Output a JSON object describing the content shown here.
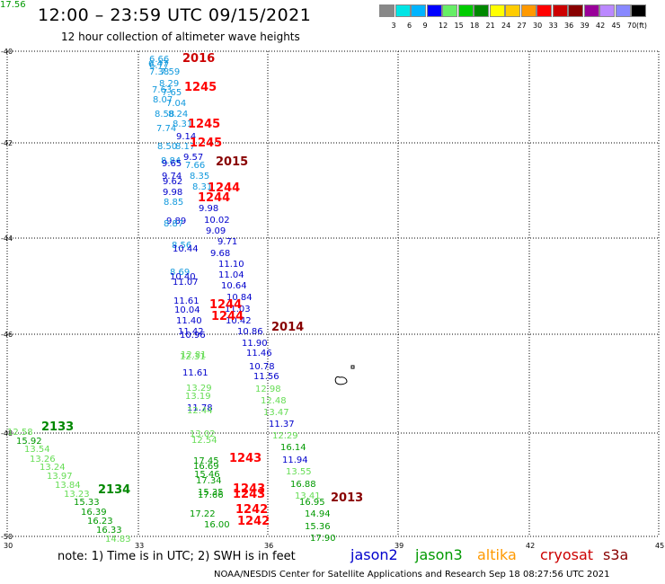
{
  "title": "12:00 – 23:59 UTC 09/15/2021",
  "subtitle": "12 hour collection of altimeter wave heights",
  "scale": {
    "colors": [
      "#888888",
      "#00e5e5",
      "#00b4ff",
      "#0000ff",
      "#66ee66",
      "#00cc00",
      "#008800",
      "#ffff00",
      "#ffcc00",
      "#ff9900",
      "#ff0000",
      "#cc0000",
      "#880000",
      "#990099",
      "#bb88ff",
      "#8888ff",
      "#000000"
    ],
    "labels": [
      "3",
      "6",
      "9",
      "12",
      "15",
      "18",
      "21",
      "24",
      "27",
      "30",
      "33",
      "36",
      "39",
      "42",
      "45",
      "70"
    ],
    "unit": "(ft)"
  },
  "axes": {
    "lat_labels": [
      "-40",
      "-42",
      "-44",
      "-46",
      "-48",
      "-50"
    ],
    "lon_labels": [
      "30",
      "33",
      "36",
      "39",
      "42",
      "45"
    ]
  },
  "tracks": {
    "colors": {
      "jason2": "#0000cc",
      "jason3": "#009900",
      "altika": "#ff9900",
      "cryosat": "#cc0000",
      "s3a": "#880000",
      "green_light": "#66dd55",
      "cyan": "#1199dd"
    },
    "time_labels": [
      {
        "text": "2016",
        "color": "#cc0000"
      },
      {
        "text": "1245",
        "color": "#ff0000"
      },
      {
        "text": "1245",
        "color": "#ff0000"
      },
      {
        "text": "1245",
        "color": "#ff0000"
      },
      {
        "text": "2015",
        "color": "#880000"
      },
      {
        "text": "1244",
        "color": "#ff0000"
      },
      {
        "text": "1244",
        "color": "#ff0000"
      },
      {
        "text": "1244",
        "color": "#ff0000"
      },
      {
        "text": "1244",
        "color": "#ff0000"
      },
      {
        "text": "2014",
        "color": "#880000"
      },
      {
        "text": "2133",
        "color": "#008800"
      },
      {
        "text": "2134",
        "color": "#008800"
      },
      {
        "text": "1243",
        "color": "#ff0000"
      },
      {
        "text": "1243",
        "color": "#ff0000"
      },
      {
        "text": "1243",
        "color": "#ff0000"
      },
      {
        "text": "1242",
        "color": "#ff0000"
      },
      {
        "text": "1242",
        "color": "#ff0000"
      },
      {
        "text": "2013",
        "color": "#880000"
      }
    ],
    "swh_values": [
      {
        "text": "6.66",
        "color": "#1199dd"
      },
      {
        "text": "6.47",
        "color": "#1199dd"
      },
      {
        "text": "6.77",
        "color": "#1199dd"
      },
      {
        "text": "7.38",
        "color": "#1199dd"
      },
      {
        "text": "7.59",
        "color": "#1199dd"
      },
      {
        "text": "8.29",
        "color": "#1199dd"
      },
      {
        "text": "7.63",
        "color": "#1199dd"
      },
      {
        "text": "7.65",
        "color": "#1199dd"
      },
      {
        "text": "8.07",
        "color": "#1199dd"
      },
      {
        "text": "7.04",
        "color": "#1199dd"
      },
      {
        "text": "8.58",
        "color": "#1199dd"
      },
      {
        "text": "8.24",
        "color": "#1199dd"
      },
      {
        "text": "8.31",
        "color": "#1199dd"
      },
      {
        "text": "7.74",
        "color": "#1199dd"
      },
      {
        "text": "9.14",
        "color": "#0000cc"
      },
      {
        "text": "8.50",
        "color": "#1199dd"
      },
      {
        "text": "8.17",
        "color": "#1199dd"
      },
      {
        "text": "9.57",
        "color": "#0000cc"
      },
      {
        "text": "8.84",
        "color": "#1199dd"
      },
      {
        "text": "9.65",
        "color": "#0000cc"
      },
      {
        "text": "7.66",
        "color": "#1199dd"
      },
      {
        "text": "9.74",
        "color": "#0000cc"
      },
      {
        "text": "8.35",
        "color": "#1199dd"
      },
      {
        "text": "9.62",
        "color": "#0000cc"
      },
      {
        "text": "8.31",
        "color": "#1199dd"
      },
      {
        "text": "9.98",
        "color": "#0000cc"
      },
      {
        "text": "8.85",
        "color": "#1199dd"
      },
      {
        "text": "9.98",
        "color": "#0000cc"
      },
      {
        "text": "9.89",
        "color": "#0000cc"
      },
      {
        "text": "8.87",
        "color": "#1199dd"
      },
      {
        "text": "10.02",
        "color": "#0000cc"
      },
      {
        "text": "9.09",
        "color": "#0000cc"
      },
      {
        "text": "8.56",
        "color": "#1199dd"
      },
      {
        "text": "9.71",
        "color": "#0000cc"
      },
      {
        "text": "10.44",
        "color": "#0000cc"
      },
      {
        "text": "9.68",
        "color": "#0000cc"
      },
      {
        "text": "11.10",
        "color": "#0000cc"
      },
      {
        "text": "8.69",
        "color": "#1199dd"
      },
      {
        "text": "11.04",
        "color": "#0000cc"
      },
      {
        "text": "10.40",
        "color": "#0000cc"
      },
      {
        "text": "11.07",
        "color": "#0000cc"
      },
      {
        "text": "10.64",
        "color": "#0000cc"
      },
      {
        "text": "10.84",
        "color": "#0000cc"
      },
      {
        "text": "11.61",
        "color": "#0000cc"
      },
      {
        "text": "10.04",
        "color": "#0000cc"
      },
      {
        "text": "11.03",
        "color": "#0000cc"
      },
      {
        "text": "11.40",
        "color": "#0000cc"
      },
      {
        "text": "10.42",
        "color": "#0000cc"
      },
      {
        "text": "11.42",
        "color": "#0000cc"
      },
      {
        "text": "10.86",
        "color": "#0000cc"
      },
      {
        "text": "10.96",
        "color": "#0000cc"
      },
      {
        "text": "11.90",
        "color": "#0000cc"
      },
      {
        "text": "12.81",
        "color": "#66dd55"
      },
      {
        "text": "11.46",
        "color": "#0000cc"
      },
      {
        "text": "12.31",
        "color": "#66dd55"
      },
      {
        "text": "10.78",
        "color": "#0000cc"
      },
      {
        "text": "11.61",
        "color": "#0000cc"
      },
      {
        "text": "11.56",
        "color": "#0000cc"
      },
      {
        "text": "13.29",
        "color": "#66dd55"
      },
      {
        "text": "12.98",
        "color": "#66dd55"
      },
      {
        "text": "13.19",
        "color": "#66dd55"
      },
      {
        "text": "12.48",
        "color": "#66dd55"
      },
      {
        "text": "11.78",
        "color": "#0000cc"
      },
      {
        "text": "13.47",
        "color": "#66dd55"
      },
      {
        "text": "12.44",
        "color": "#66dd55"
      },
      {
        "text": "11.37",
        "color": "#0000cc"
      },
      {
        "text": "13.02",
        "color": "#66dd55"
      },
      {
        "text": "12.29",
        "color": "#66dd55"
      },
      {
        "text": "12.54",
        "color": "#66dd55"
      },
      {
        "text": "12.58",
        "color": "#66dd55"
      },
      {
        "text": "15.92",
        "color": "#009900"
      },
      {
        "text": "16.14",
        "color": "#009900"
      },
      {
        "text": "13.54",
        "color": "#66dd55"
      },
      {
        "text": "17.45",
        "color": "#009900"
      },
      {
        "text": "11.94",
        "color": "#0000cc"
      },
      {
        "text": "13.26",
        "color": "#66dd55"
      },
      {
        "text": "16.69",
        "color": "#009900"
      },
      {
        "text": "13.24",
        "color": "#66dd55"
      },
      {
        "text": "15.46",
        "color": "#009900"
      },
      {
        "text": "13.55",
        "color": "#66dd55"
      },
      {
        "text": "13.97",
        "color": "#66dd55"
      },
      {
        "text": "17.34",
        "color": "#009900"
      },
      {
        "text": "13.84",
        "color": "#66dd55"
      },
      {
        "text": "16.88",
        "color": "#009900"
      },
      {
        "text": "15.35",
        "color": "#009900"
      },
      {
        "text": "13.23",
        "color": "#66dd55"
      },
      {
        "text": "17.66",
        "color": "#009900"
      },
      {
        "text": "13.41",
        "color": "#66dd55"
      },
      {
        "text": "15.33",
        "color": "#009900"
      },
      {
        "text": "16.95",
        "color": "#009900"
      },
      {
        "text": "16.39",
        "color": "#009900"
      },
      {
        "text": "17.22",
        "color": "#009900"
      },
      {
        "text": "14.94",
        "color": "#009900"
      },
      {
        "text": "16.23",
        "color": "#009900"
      },
      {
        "text": "16.00",
        "color": "#009900"
      },
      {
        "text": "15.36",
        "color": "#009900"
      },
      {
        "text": "16.33",
        "color": "#009900"
      },
      {
        "text": "14.83",
        "color": "#66dd55"
      },
      {
        "text": "17.90",
        "color": "#009900"
      },
      {
        "text": "17.56",
        "color": "#009900"
      }
    ]
  },
  "note": "note: 1) Time is in UTC; 2) SWH is in feet",
  "legend": [
    {
      "name": "jason2",
      "color": "#0000cc"
    },
    {
      "name": "jason3",
      "color": "#009900"
    },
    {
      "name": "altika",
      "color": "#ff9900"
    },
    {
      "name": "cryosat",
      "color": "#cc0000"
    },
    {
      "name": "s3a",
      "color": "#880000"
    }
  ],
  "footer": "NOAA/NESDIS Center for Satellite Applications and Research    Sep 18 08:27:56 UTC 2021"
}
